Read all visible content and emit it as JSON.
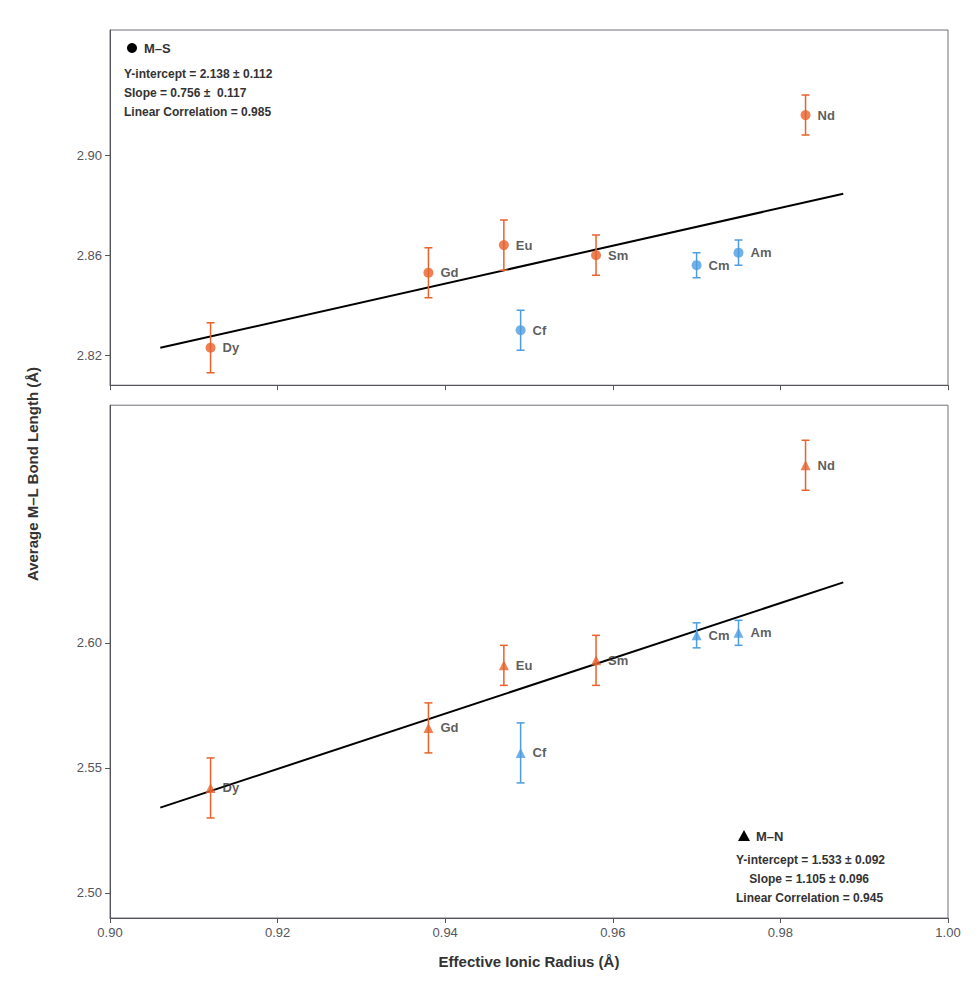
{
  "chart_data": [
    {
      "type": "scatter",
      "ylabel": "Average M–L Bond Length (Å)",
      "xlim": [
        0.9,
        1.0
      ],
      "xticks": [
        {
          "value": 0.9,
          "label": "0.90"
        },
        0.92,
        0.94,
        0.96,
        0.98,
        {
          "value": 1.0,
          "label": "1.00"
        }
      ],
      "ylim": [
        2.808,
        2.95
      ],
      "yticks": [
        2.82,
        2.86,
        {
          "value": 2.9,
          "label": "2.90"
        }
      ],
      "grid": false,
      "tick_labels": "y",
      "series": [
        {
          "type": "scatter",
          "color": "#e8622a",
          "marker": "circle",
          "labels": [
            "Dy",
            "Gd",
            "Eu",
            "Sm",
            "Nd"
          ],
          "x": [
            0.912,
            0.938,
            0.947,
            0.958,
            0.983
          ],
          "values": [
            2.823,
            2.853,
            2.864,
            2.86,
            2.916
          ],
          "yerr": [
            0.01,
            0.01,
            0.01,
            0.008,
            0.008
          ]
        },
        {
          "type": "scatter",
          "color": "#4d9de0",
          "marker": "circle",
          "labels": [
            "Am",
            "Cm",
            "Cf"
          ],
          "x": [
            0.975,
            0.97,
            0.949
          ],
          "values": [
            2.861,
            2.856,
            2.83
          ],
          "yerr": [
            0.005,
            0.005,
            0.008
          ]
        },
        {
          "type": "line",
          "color": "#000000",
          "line_style": "solid",
          "x": [
            0.906,
            0.9875
          ],
          "values": [
            2.822936,
            2.88455
          ]
        }
      ],
      "annotations": [
        {
          "text": "M–S",
          "marker": "circle",
          "color": "#000000"
        },
        {
          "text": "Y-intercept = 2.138 ± 0.112\nSlope = 0.756 ±  0.117\nLinear Correlation = 0.985"
        }
      ]
    },
    {
      "type": "scatter",
      "xlabel": "Effective Ionic Radius (Å)",
      "xlim": [
        0.9,
        1.0
      ],
      "xticks": [
        {
          "value": 0.9,
          "label": "0.90"
        },
        0.92,
        0.94,
        0.96,
        0.98,
        {
          "value": 1.0,
          "label": "1.00"
        }
      ],
      "ylim": [
        2.49,
        2.695
      ],
      "yticks": [
        {
          "value": 2.5,
          "label": "2.50"
        },
        2.55,
        {
          "value": 2.6,
          "label": "2.60"
        }
      ],
      "grid": false,
      "series": [
        {
          "type": "scatter",
          "color": "#e8622a",
          "marker": "triangle",
          "labels": [
            "Dy",
            "Gd",
            "Eu",
            "Sm",
            "Nd"
          ],
          "x": [
            0.912,
            0.938,
            0.947,
            0.958,
            0.983
          ],
          "values": [
            2.542,
            2.566,
            2.591,
            2.593,
            2.671
          ],
          "yerr": [
            0.012,
            0.01,
            0.008,
            0.01,
            0.01
          ]
        },
        {
          "type": "scatter",
          "color": "#4d9de0",
          "marker": "triangle",
          "labels": [
            "Am",
            "Cm",
            "Cf"
          ],
          "x": [
            0.975,
            0.97,
            0.949
          ],
          "values": [
            2.604,
            2.603,
            2.556
          ],
          "yerr": [
            0.005,
            0.005,
            0.012
          ]
        },
        {
          "type": "line",
          "color": "#000000",
          "line_style": "solid",
          "x": [
            0.906,
            0.9875
          ],
          "values": [
            2.53413,
            2.6241875
          ]
        }
      ],
      "annotations": [
        {
          "text": "M–N",
          "marker": "triangle",
          "color": "#000000"
        },
        {
          "text": "Y-intercept = 1.533 ± 0.092\n    Slope = 1.105 ± 0.096\nLinear Correlation = 0.945"
        }
      ]
    }
  ]
}
